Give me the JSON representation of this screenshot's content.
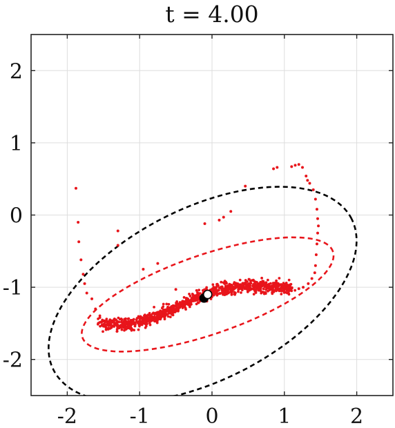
{
  "chart_data": {
    "type": "scatter",
    "title": "t = 4.00",
    "xlabel": "",
    "ylabel": "",
    "xlim": [
      -2.5,
      2.5
    ],
    "ylim": [
      -2.5,
      2.5
    ],
    "xticks": [
      -2,
      -1,
      0,
      1,
      2
    ],
    "yticks": [
      -2,
      -1,
      0,
      1,
      2
    ],
    "xtick_labels": [
      "-2",
      "-1",
      "0",
      "1",
      "2"
    ],
    "ytick_labels": [
      "-2",
      "-1",
      "0",
      "1",
      "2"
    ],
    "grid": true,
    "colors": {
      "particles": "#e8151b",
      "outer_ellipse": "#000000",
      "inner_ellipse": "#e8151b",
      "grid": "#dddddd"
    },
    "series": [
      {
        "kind": "particles",
        "points": [
          [
            -1.88,
            0.37
          ],
          [
            -1.85,
            -0.1
          ],
          [
            -1.84,
            -0.37
          ],
          [
            -1.81,
            -0.62
          ],
          [
            -1.78,
            -0.82
          ],
          [
            -1.76,
            -0.95
          ],
          [
            -1.73,
            -1.08
          ],
          [
            -1.66,
            -1.16
          ],
          [
            -1.61,
            -1.3
          ],
          [
            -1.55,
            -1.42
          ],
          [
            -1.3,
            -0.22
          ],
          [
            -1.3,
            -0.42
          ],
          [
            -0.95,
            -0.75
          ],
          [
            -0.75,
            -0.67
          ],
          [
            -0.5,
            -1.03
          ],
          [
            -0.1,
            -0.12
          ],
          [
            0.1,
            -0.07
          ],
          [
            0.16,
            -0.03
          ],
          [
            0.26,
            0.05
          ],
          [
            0.46,
            0.4
          ],
          [
            0.85,
            0.64
          ],
          [
            0.9,
            0.66
          ],
          [
            1.1,
            0.67
          ],
          [
            1.15,
            0.69
          ],
          [
            1.2,
            0.7
          ],
          [
            1.25,
            0.66
          ],
          [
            1.3,
            0.54
          ],
          [
            1.32,
            0.48
          ],
          [
            1.35,
            0.44
          ],
          [
            1.4,
            0.35
          ],
          [
            1.43,
            0.22
          ],
          [
            1.45,
            0.08
          ],
          [
            1.46,
            -0.05
          ],
          [
            1.47,
            -0.15
          ],
          [
            1.46,
            -0.25
          ],
          [
            1.45,
            -0.4
          ],
          [
            1.44,
            -0.55
          ],
          [
            1.43,
            -0.7
          ],
          [
            1.42,
            -0.8
          ],
          [
            1.38,
            -0.88
          ],
          [
            1.33,
            -0.95
          ],
          [
            1.26,
            -1.0
          ],
          [
            1.2,
            -1.02
          ]
        ],
        "band": {
          "centerline": [
            [
              -1.55,
              -1.5
            ],
            [
              -1.2,
              -1.52
            ],
            [
              -0.9,
              -1.45
            ],
            [
              -0.6,
              -1.33
            ],
            [
              -0.35,
              -1.2
            ],
            [
              -0.15,
              -1.12
            ],
            [
              0.05,
              -1.05
            ],
            [
              0.3,
              -1.0
            ],
            [
              0.6,
              -0.98
            ],
            [
              0.9,
              -1.0
            ],
            [
              1.1,
              -1.02
            ]
          ],
          "count": 1100,
          "half_width": 0.09
        }
      },
      {
        "kind": "markers",
        "points": [
          {
            "x": -0.11,
            "y": -1.15,
            "fill": "#000000"
          },
          {
            "x": -0.06,
            "y": -1.1,
            "fill": "#ffffff"
          }
        ]
      }
    ],
    "ellipses": [
      {
        "name": "outer",
        "cx": -0.13,
        "cy": -1.1,
        "rx": 2.31,
        "ry": 1.19,
        "angle_deg": 27,
        "color": "#000000"
      },
      {
        "name": "inner",
        "cx": -0.06,
        "cy": -1.1,
        "rx": 1.83,
        "ry": 0.55,
        "angle_deg": 19,
        "color": "#e8151b"
      }
    ]
  }
}
